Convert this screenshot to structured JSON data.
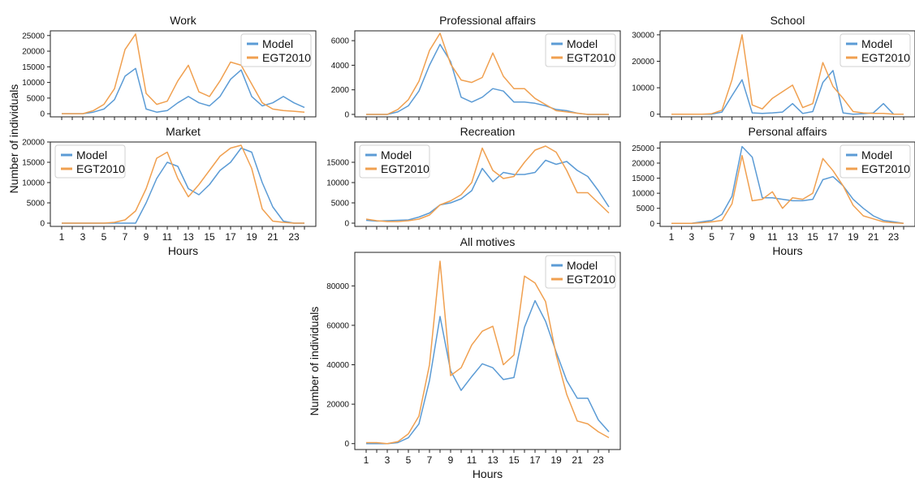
{
  "figure": {
    "ylabel_top": "Number of individuals",
    "ylabel_bottom": "Number of individuals",
    "xlabel": "Hours",
    "series_colors": {
      "Model": "#5b9bd5",
      "EGT2010": "#f0a050"
    },
    "legend_labels": [
      "Model",
      "EGT2010"
    ]
  },
  "chart_data": [
    {
      "type": "line",
      "title": "Work",
      "x": [
        1,
        2,
        3,
        4,
        5,
        6,
        7,
        8,
        9,
        10,
        11,
        12,
        13,
        14,
        15,
        16,
        17,
        18,
        19,
        20,
        21,
        22,
        23,
        24
      ],
      "ylim": [
        -1000,
        26500
      ],
      "yticks": [
        0,
        5000,
        10000,
        15000,
        20000,
        25000
      ],
      "xticks": [],
      "legend": "top-right",
      "xlabel": "",
      "ylabel": "Number of individuals",
      "series": [
        {
          "name": "Model",
          "values": [
            0,
            0,
            0,
            500,
            1500,
            4500,
            12000,
            14500,
            1500,
            500,
            1000,
            3500,
            5500,
            3500,
            2500,
            5500,
            11000,
            14000,
            5500,
            2500,
            3500,
            5500,
            3500,
            2000
          ]
        },
        {
          "name": "EGT2010",
          "values": [
            0,
            0,
            0,
            1000,
            3000,
            8000,
            20500,
            25500,
            6500,
            3000,
            4000,
            10500,
            15500,
            7000,
            5500,
            10500,
            16500,
            15500,
            9500,
            3500,
            1500,
            1000,
            800,
            500
          ]
        }
      ]
    },
    {
      "type": "line",
      "title": "Professional affairs",
      "x": [
        1,
        2,
        3,
        4,
        5,
        6,
        7,
        8,
        9,
        10,
        11,
        12,
        13,
        14,
        15,
        16,
        17,
        18,
        19,
        20,
        21,
        22,
        23,
        24
      ],
      "ylim": [
        -200,
        6800
      ],
      "yticks": [
        0,
        2000,
        4000,
        6000
      ],
      "xticks": [],
      "legend": "top-right",
      "xlabel": "",
      "ylabel": "",
      "series": [
        {
          "name": "Model",
          "values": [
            0,
            0,
            0,
            200,
            700,
            1900,
            4000,
            5700,
            4300,
            1400,
            1000,
            1400,
            2100,
            1900,
            1000,
            1000,
            900,
            700,
            400,
            300,
            100,
            0,
            0,
            0
          ]
        },
        {
          "name": "EGT2010",
          "values": [
            0,
            0,
            0,
            400,
            1200,
            2700,
            5200,
            6600,
            4100,
            2800,
            2600,
            3000,
            5000,
            3100,
            2100,
            2100,
            1300,
            800,
            300,
            200,
            100,
            0,
            0,
            0
          ]
        }
      ]
    },
    {
      "type": "line",
      "title": "School",
      "x": [
        1,
        2,
        3,
        4,
        5,
        6,
        7,
        8,
        9,
        10,
        11,
        12,
        13,
        14,
        15,
        16,
        17,
        18,
        19,
        20,
        21,
        22,
        23,
        24
      ],
      "ylim": [
        -1000,
        31500
      ],
      "yticks": [
        0,
        10000,
        20000,
        30000
      ],
      "xticks": [],
      "legend": "top-right",
      "xlabel": "",
      "ylabel": "",
      "series": [
        {
          "name": "Model",
          "values": [
            0,
            0,
            0,
            0,
            0,
            800,
            7000,
            13000,
            500,
            300,
            500,
            800,
            4000,
            300,
            1000,
            12000,
            16500,
            500,
            0,
            200,
            500,
            4000,
            0,
            0
          ]
        },
        {
          "name": "EGT2010",
          "values": [
            0,
            0,
            0,
            0,
            200,
            1500,
            13000,
            30000,
            3500,
            2000,
            6000,
            8500,
            11000,
            2500,
            4000,
            19500,
            10500,
            6000,
            1000,
            500,
            300,
            300,
            0,
            0
          ]
        }
      ]
    },
    {
      "type": "line",
      "title": "Market",
      "x": [
        1,
        2,
        3,
        4,
        5,
        6,
        7,
        8,
        9,
        10,
        11,
        12,
        13,
        14,
        15,
        16,
        17,
        18,
        19,
        20,
        21,
        22,
        23,
        24
      ],
      "ylim": [
        -800,
        20000
      ],
      "yticks": [
        0,
        5000,
        10000,
        15000,
        20000
      ],
      "xticks": [
        "1",
        "3",
        "5",
        "7",
        "9",
        "11",
        "13",
        "15",
        "17",
        "19",
        "21",
        "23"
      ],
      "legend": "top-left",
      "xlabel": "Hours",
      "ylabel": "Number of individuals",
      "series": [
        {
          "name": "Model",
          "values": [
            0,
            0,
            0,
            0,
            0,
            0,
            0,
            0,
            5000,
            11000,
            15000,
            14000,
            8500,
            7000,
            9500,
            13000,
            15000,
            18500,
            17500,
            10000,
            4000,
            500,
            0,
            0
          ]
        },
        {
          "name": "EGT2010",
          "values": [
            0,
            0,
            0,
            0,
            0,
            200,
            800,
            3000,
            8500,
            16000,
            17500,
            11000,
            6500,
            9500,
            13000,
            16500,
            18500,
            19200,
            13500,
            3500,
            500,
            200,
            0,
            0
          ]
        }
      ]
    },
    {
      "type": "line",
      "title": "Recreation",
      "x": [
        1,
        2,
        3,
        4,
        5,
        6,
        7,
        8,
        9,
        10,
        11,
        12,
        13,
        14,
        15,
        16,
        17,
        18,
        19,
        20,
        21,
        22,
        23,
        24
      ],
      "ylim": [
        -800,
        20000
      ],
      "yticks": [
        0,
        5000,
        10000,
        15000
      ],
      "xticks": [],
      "legend": "top-left",
      "xlabel": "",
      "ylabel": "",
      "series": [
        {
          "name": "Model",
          "values": [
            700,
            500,
            600,
            700,
            800,
            1500,
            2500,
            4500,
            5000,
            6000,
            8000,
            13500,
            10200,
            12500,
            12000,
            12000,
            12500,
            15500,
            14500,
            15200,
            13000,
            11500,
            8000,
            4000
          ]
        },
        {
          "name": "EGT2010",
          "values": [
            1000,
            600,
            400,
            400,
            600,
            1000,
            2000,
            4500,
            5500,
            7000,
            10000,
            18500,
            13000,
            11000,
            11500,
            15000,
            18000,
            19000,
            17500,
            13000,
            7500,
            7500,
            5000,
            2500
          ]
        }
      ]
    },
    {
      "type": "line",
      "title": "Personal affairs",
      "x": [
        1,
        2,
        3,
        4,
        5,
        6,
        7,
        8,
        9,
        10,
        11,
        12,
        13,
        14,
        15,
        16,
        17,
        18,
        19,
        20,
        21,
        22,
        23,
        24
      ],
      "ylim": [
        -1000,
        27000
      ],
      "yticks": [
        0,
        5000,
        10000,
        15000,
        20000,
        25000
      ],
      "xticks": [
        "1",
        "3",
        "5",
        "7",
        "9",
        "11",
        "13",
        "15",
        "17",
        "19",
        "21",
        "23"
      ],
      "legend": "top-right",
      "xlabel": "Hours",
      "ylabel": "",
      "series": [
        {
          "name": "Model",
          "values": [
            0,
            0,
            0,
            500,
            1000,
            3000,
            9000,
            25500,
            22000,
            8500,
            8500,
            8000,
            7500,
            7500,
            8000,
            14500,
            15500,
            12500,
            8000,
            5000,
            2500,
            1000,
            500,
            0
          ]
        },
        {
          "name": "EGT2010",
          "values": [
            0,
            0,
            0,
            200,
            500,
            1000,
            6500,
            22500,
            7500,
            8000,
            10500,
            5000,
            8500,
            8000,
            10000,
            21500,
            17500,
            12500,
            6000,
            2500,
            1500,
            500,
            200,
            0
          ]
        }
      ]
    },
    {
      "type": "line",
      "title": "All motives",
      "x": [
        1,
        2,
        3,
        4,
        5,
        6,
        7,
        8,
        9,
        10,
        11,
        12,
        13,
        14,
        15,
        16,
        17,
        18,
        19,
        20,
        21,
        22,
        23,
        24
      ],
      "ylim": [
        -3000,
        97000
      ],
      "yticks": [
        0,
        20000,
        40000,
        60000,
        80000
      ],
      "xticks": [
        "1",
        "3",
        "5",
        "7",
        "9",
        "11",
        "13",
        "15",
        "17",
        "19",
        "21",
        "23"
      ],
      "legend": "top-right",
      "xlabel": "Hours",
      "ylabel": "Number of individuals",
      "series": [
        {
          "name": "Model",
          "values": [
            0,
            0,
            0,
            500,
            3000,
            10000,
            32000,
            64500,
            37000,
            27000,
            34000,
            40500,
            38500,
            32500,
            33500,
            59000,
            72500,
            62000,
            46500,
            32000,
            23000,
            23000,
            12000,
            6000
          ]
        },
        {
          "name": "EGT2010",
          "values": [
            500,
            500,
            0,
            1000,
            5000,
            14000,
            40000,
            92500,
            34500,
            38500,
            50000,
            57000,
            59500,
            40000,
            45000,
            85000,
            81500,
            72000,
            45000,
            25000,
            11500,
            10000,
            6000,
            3000
          ]
        }
      ]
    }
  ]
}
